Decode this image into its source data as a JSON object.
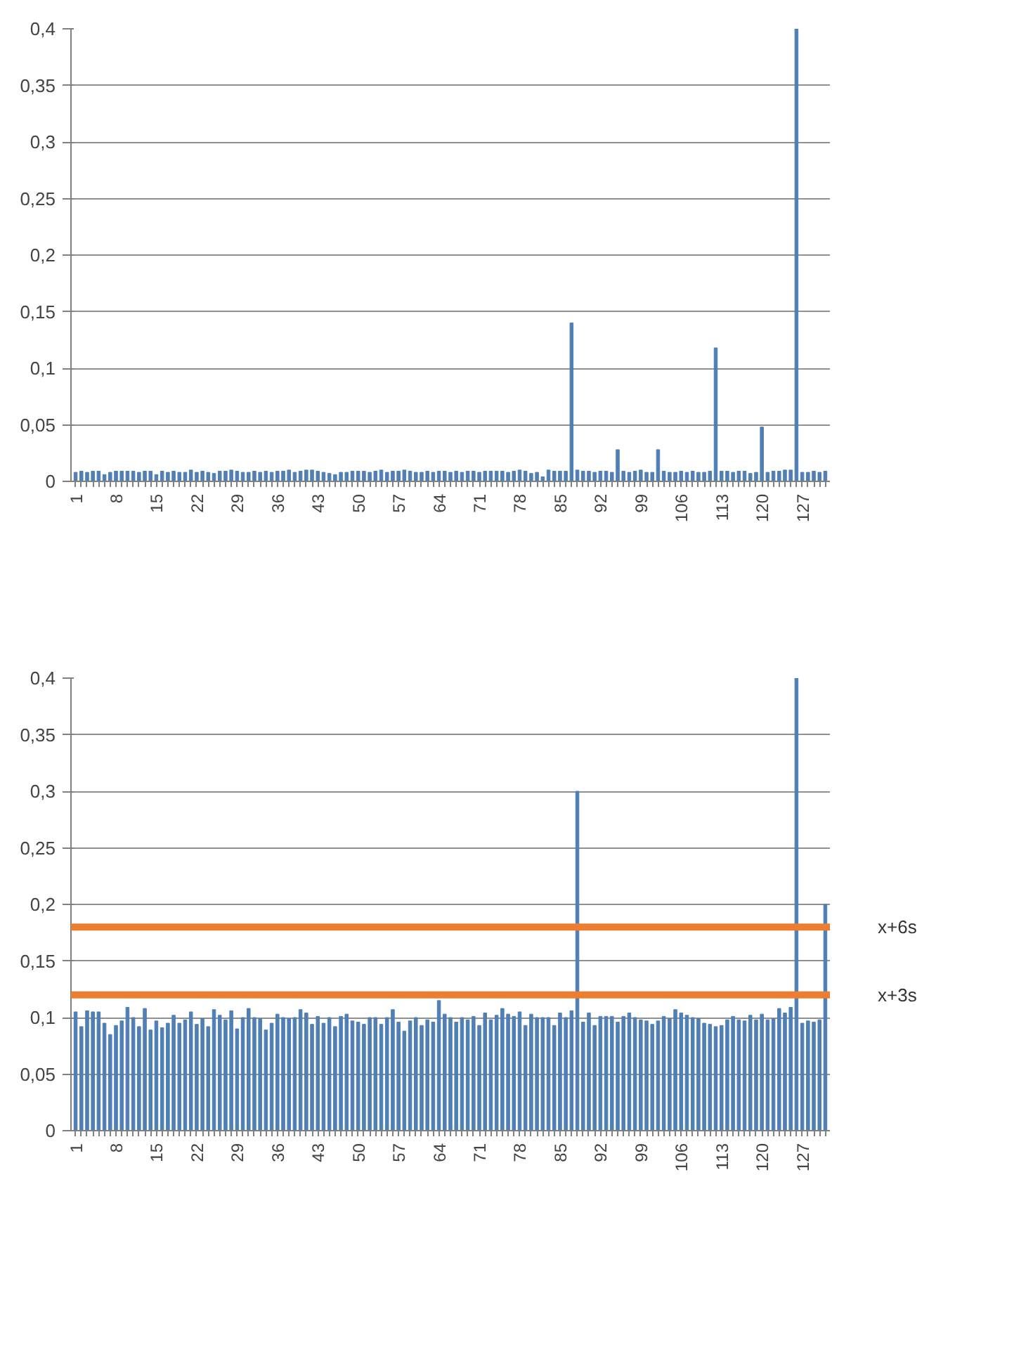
{
  "chart_data": [
    {
      "type": "bar",
      "color": "#4f7fb5",
      "grid": "y",
      "categories": [
        "1",
        null,
        null,
        null,
        null,
        null,
        null,
        "8",
        null,
        null,
        null,
        null,
        null,
        null,
        "15",
        null,
        null,
        null,
        null,
        null,
        null,
        "22",
        null,
        null,
        null,
        null,
        null,
        null,
        "29",
        null,
        null,
        null,
        null,
        null,
        null,
        "36",
        null,
        null,
        null,
        null,
        null,
        null,
        "43",
        null,
        null,
        null,
        null,
        null,
        null,
        "50",
        null,
        null,
        null,
        null,
        null,
        null,
        "57",
        null,
        null,
        null,
        null,
        null,
        null,
        "64",
        null,
        null,
        null,
        null,
        null,
        null,
        "71",
        null,
        null,
        null,
        null,
        null,
        null,
        "78",
        null,
        null,
        null,
        null,
        null,
        null,
        "85",
        null,
        null,
        null,
        null,
        null,
        null,
        "92",
        null,
        null,
        null,
        null,
        null,
        null,
        "99",
        null,
        null,
        null,
        null,
        null,
        null,
        "106",
        null,
        null,
        null,
        null,
        null,
        null,
        "113",
        null,
        null,
        null,
        null,
        null,
        null,
        "120",
        null,
        null,
        null,
        null,
        null,
        null,
        "127",
        null,
        null,
        null,
        null
      ],
      "values": [
        0.008,
        0.009,
        0.008,
        0.009,
        0.009,
        0.006,
        0.008,
        0.009,
        0.009,
        0.009,
        0.009,
        0.008,
        0.009,
        0.009,
        0.006,
        0.009,
        0.008,
        0.009,
        0.008,
        0.008,
        0.01,
        0.008,
        0.009,
        0.008,
        0.007,
        0.009,
        0.009,
        0.01,
        0.009,
        0.008,
        0.008,
        0.009,
        0.008,
        0.009,
        0.008,
        0.009,
        0.009,
        0.01,
        0.008,
        0.009,
        0.01,
        0.01,
        0.009,
        0.008,
        0.007,
        0.006,
        0.008,
        0.008,
        0.009,
        0.009,
        0.009,
        0.008,
        0.009,
        0.01,
        0.008,
        0.009,
        0.009,
        0.01,
        0.009,
        0.008,
        0.008,
        0.009,
        0.008,
        0.009,
        0.009,
        0.008,
        0.009,
        0.008,
        0.009,
        0.009,
        0.008,
        0.009,
        0.009,
        0.009,
        0.009,
        0.008,
        0.009,
        0.01,
        0.009,
        0.007,
        0.008,
        0.004,
        0.01,
        0.009,
        0.009,
        0.009,
        0.14,
        0.01,
        0.009,
        0.009,
        0.008,
        0.009,
        0.009,
        0.008,
        0.028,
        0.009,
        0.008,
        0.009,
        0.01,
        0.008,
        0.008,
        0.028,
        0.009,
        0.008,
        0.008,
        0.009,
        0.008,
        0.009,
        0.008,
        0.008,
        0.009,
        0.118,
        0.009,
        0.009,
        0.008,
        0.009,
        0.009,
        0.007,
        0.008,
        0.048,
        0.008,
        0.009,
        0.009,
        0.01,
        0.01,
        0.4,
        0.008,
        0.008,
        0.009,
        0.008,
        0.009
      ],
      "ylim": [
        0,
        0.4
      ],
      "yticks": [
        0,
        {
          "value": 0.05,
          "label": "0,05"
        },
        {
          "value": 0.1,
          "label": "0,1"
        },
        {
          "value": 0.15,
          "label": "0,15"
        },
        {
          "value": 0.2,
          "label": "0,2"
        },
        {
          "value": 0.25,
          "label": "0,25"
        },
        {
          "value": 0.3,
          "label": "0,3"
        },
        {
          "value": 0.35,
          "label": "0,35"
        },
        {
          "value": 0.4,
          "label": "0,4"
        }
      ]
    },
    {
      "type": "bar",
      "color": "#4f7fb5",
      "grid": "y",
      "categories": [
        "1",
        null,
        null,
        null,
        null,
        null,
        null,
        "8",
        null,
        null,
        null,
        null,
        null,
        null,
        "15",
        null,
        null,
        null,
        null,
        null,
        null,
        "22",
        null,
        null,
        null,
        null,
        null,
        null,
        "29",
        null,
        null,
        null,
        null,
        null,
        null,
        "36",
        null,
        null,
        null,
        null,
        null,
        null,
        "43",
        null,
        null,
        null,
        null,
        null,
        null,
        "50",
        null,
        null,
        null,
        null,
        null,
        null,
        "57",
        null,
        null,
        null,
        null,
        null,
        null,
        "64",
        null,
        null,
        null,
        null,
        null,
        null,
        "71",
        null,
        null,
        null,
        null,
        null,
        null,
        "78",
        null,
        null,
        null,
        null,
        null,
        null,
        "85",
        null,
        null,
        null,
        null,
        null,
        null,
        "92",
        null,
        null,
        null,
        null,
        null,
        null,
        "99",
        null,
        null,
        null,
        null,
        null,
        null,
        "106",
        null,
        null,
        null,
        null,
        null,
        null,
        "113",
        null,
        null,
        null,
        null,
        null,
        null,
        "120",
        null,
        null,
        null,
        null,
        null,
        null,
        "127",
        null,
        null,
        null,
        null
      ],
      "values": [
        0.105,
        0.092,
        0.106,
        0.105,
        0.105,
        0.095,
        0.085,
        0.093,
        0.097,
        0.109,
        0.1,
        0.092,
        0.108,
        0.089,
        0.097,
        0.091,
        0.095,
        0.102,
        0.095,
        0.098,
        0.105,
        0.094,
        0.099,
        0.092,
        0.107,
        0.102,
        0.098,
        0.106,
        0.09,
        0.1,
        0.108,
        0.1,
        0.099,
        0.089,
        0.095,
        0.103,
        0.1,
        0.099,
        0.1,
        0.107,
        0.104,
        0.094,
        0.101,
        0.095,
        0.1,
        0.092,
        0.101,
        0.103,
        0.097,
        0.096,
        0.094,
        0.1,
        0.1,
        0.094,
        0.1,
        0.107,
        0.096,
        0.088,
        0.097,
        0.1,
        0.093,
        0.098,
        0.096,
        0.115,
        0.103,
        0.1,
        0.096,
        0.1,
        0.098,
        0.101,
        0.093,
        0.104,
        0.098,
        0.102,
        0.108,
        0.103,
        0.101,
        0.105,
        0.093,
        0.103,
        0.1,
        0.1,
        0.1,
        0.093,
        0.104,
        0.1,
        0.106,
        0.3,
        0.096,
        0.104,
        0.093,
        0.101,
        0.101,
        0.101,
        0.096,
        0.101,
        0.104,
        0.1,
        0.098,
        0.097,
        0.094,
        0.097,
        0.101,
        0.099,
        0.107,
        0.104,
        0.102,
        0.1,
        0.099,
        0.095,
        0.094,
        0.092,
        0.093,
        0.098,
        0.101,
        0.098,
        0.097,
        0.102,
        0.098,
        0.103,
        0.098,
        0.099,
        0.108,
        0.104,
        0.109,
        0.4,
        0.095,
        0.097,
        0.096,
        0.098,
        0.2
      ],
      "ylim": [
        0,
        0.4
      ],
      "yticks": [
        0,
        {
          "value": 0.05,
          "label": "0,05"
        },
        {
          "value": 0.1,
          "label": "0,1"
        },
        {
          "value": 0.15,
          "label": "0,15"
        },
        {
          "value": 0.2,
          "label": "0,2"
        },
        {
          "value": 0.25,
          "label": "0,25"
        },
        {
          "value": 0.3,
          "label": "0,3"
        },
        {
          "value": 0.35,
          "label": "0,35"
        },
        {
          "value": 0.4,
          "label": "0,4"
        }
      ],
      "ref_lines": [
        {
          "axis": "y",
          "value": 0.18,
          "label": "x+6s",
          "color": "#ed7d31"
        },
        {
          "axis": "y",
          "value": 0.12,
          "label": "x+3s",
          "color": "#ed7d31"
        }
      ]
    }
  ]
}
